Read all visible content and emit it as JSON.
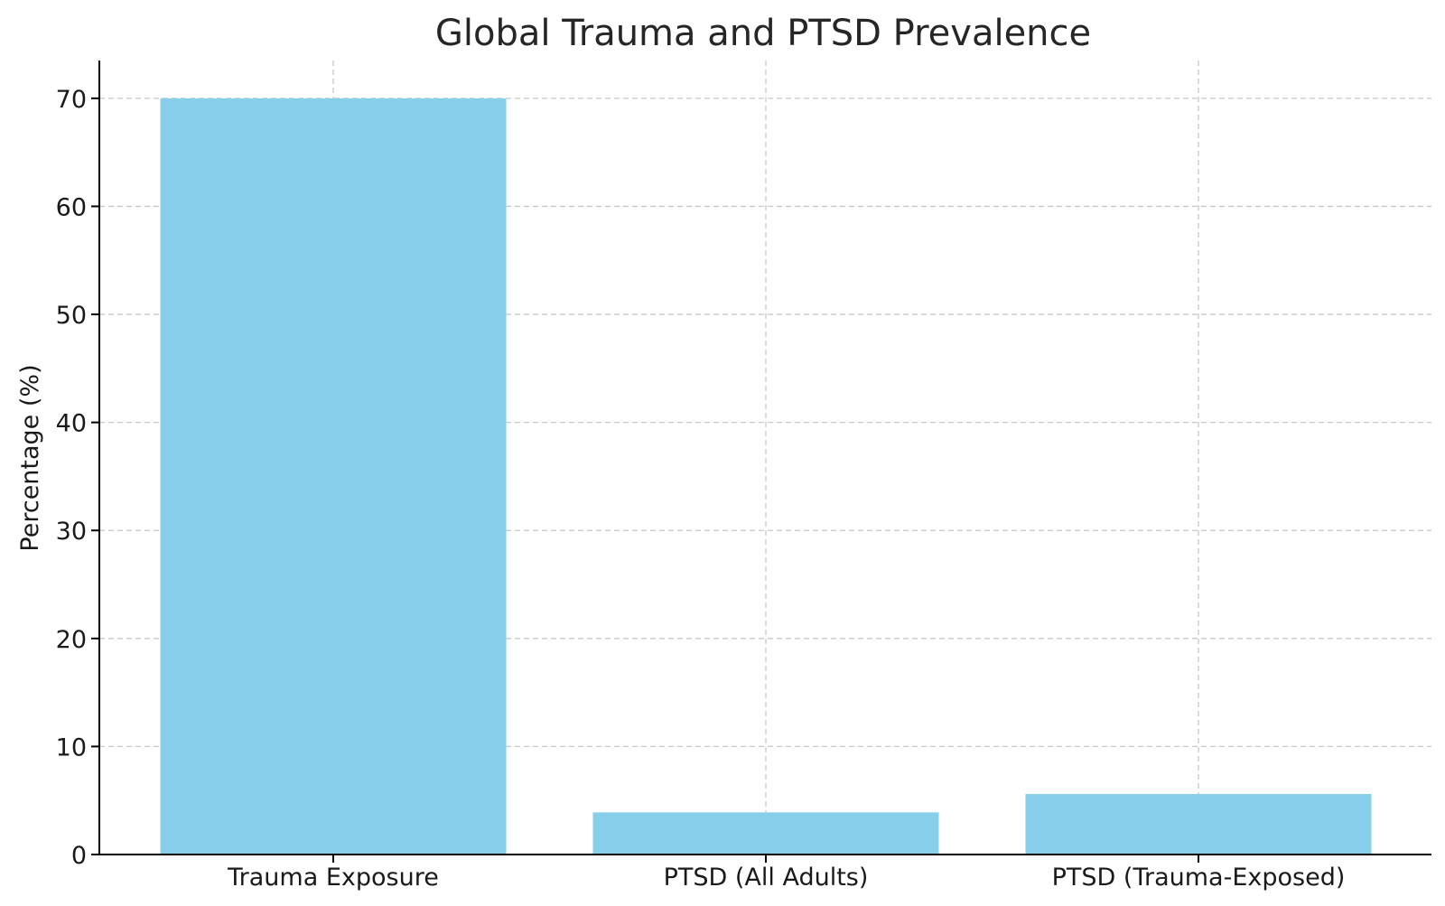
{
  "chart_data": {
    "type": "bar",
    "title": "Global Trauma and PTSD Prevalence",
    "xlabel": "",
    "ylabel": "Percentage (%)",
    "categories": [
      "Trauma Exposure",
      "PTSD (All Adults)",
      "PTSD (Trauma-Exposed)"
    ],
    "values": [
      70,
      3.9,
      5.6
    ],
    "ylim": [
      0,
      73.5
    ],
    "yticks": [
      0,
      10,
      20,
      30,
      40,
      50,
      60,
      70
    ],
    "grid": true,
    "bar_color": "#87CEEB"
  }
}
